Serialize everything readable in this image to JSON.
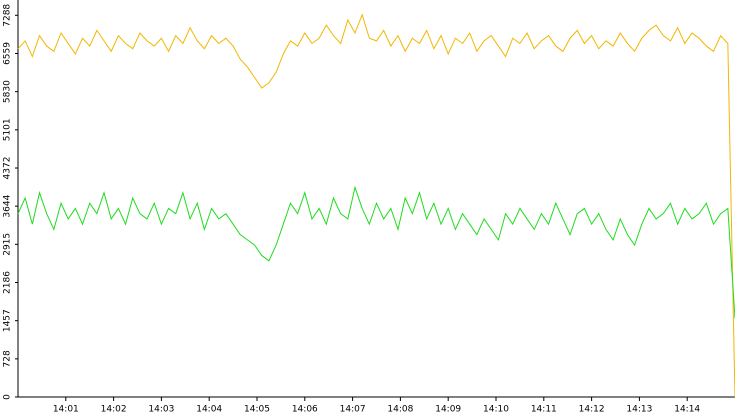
{
  "chart_data": {
    "type": "line",
    "x": [
      840,
      840.15,
      840.3,
      840.45,
      840.6,
      840.75,
      840.9,
      841.05,
      841.2,
      841.35,
      841.5,
      841.65,
      841.8,
      841.95,
      842.1,
      842.25,
      842.4,
      842.55,
      842.7,
      842.85,
      843,
      843.15,
      843.3,
      843.45,
      843.6,
      843.75,
      843.9,
      844.05,
      844.2,
      844.35,
      844.5,
      844.65,
      844.8,
      844.95,
      845.1,
      845.25,
      845.4,
      845.55,
      845.7,
      845.85,
      846,
      846.15,
      846.3,
      846.45,
      846.6,
      846.75,
      846.9,
      847.05,
      847.2,
      847.35,
      847.5,
      847.65,
      847.8,
      847.95,
      848.1,
      848.25,
      848.4,
      848.55,
      848.7,
      848.85,
      849,
      849.15,
      849.3,
      849.45,
      849.6,
      849.75,
      849.9,
      850.05,
      850.2,
      850.35,
      850.5,
      850.65,
      850.8,
      850.95,
      851.1,
      851.25,
      851.4,
      851.55,
      851.7,
      851.85,
      852,
      852.15,
      852.3,
      852.45,
      852.6,
      852.75,
      852.9,
      853.05,
      853.2,
      853.35,
      853.5,
      853.65,
      853.8,
      853.95,
      854.1,
      854.25,
      854.4,
      854.55,
      854.7,
      854.85,
      855
    ],
    "series": [
      {
        "color": "#f2b700",
        "values": [
          6650,
          6800,
          6500,
          6900,
          6700,
          6600,
          6950,
          6750,
          6550,
          6850,
          6700,
          7000,
          6800,
          6600,
          6900,
          6750,
          6650,
          6950,
          6800,
          6700,
          6850,
          6600,
          6900,
          6750,
          7050,
          6800,
          6650,
          6900,
          6750,
          6850,
          6700,
          6450,
          6300,
          6100,
          5900,
          6000,
          6200,
          6550,
          6800,
          6700,
          6950,
          6750,
          6850,
          7100,
          6900,
          6750,
          7200,
          6950,
          7300,
          6850,
          6800,
          7000,
          6700,
          6900,
          6600,
          6850,
          6750,
          7000,
          6650,
          6900,
          6550,
          6850,
          6750,
          6950,
          6600,
          6800,
          6900,
          6700,
          6500,
          6850,
          6750,
          6950,
          6650,
          6800,
          6900,
          6700,
          6600,
          6850,
          7000,
          6750,
          6900,
          6650,
          6800,
          6700,
          6950,
          6750,
          6600,
          6850,
          7000,
          7100,
          6900,
          6800,
          7050,
          6750,
          6950,
          6850,
          6700,
          6600,
          6900,
          6750,
          0
        ]
      },
      {
        "color": "#1fdc1f",
        "values": [
          3500,
          3800,
          3300,
          3900,
          3500,
          3200,
          3700,
          3400,
          3600,
          3300,
          3700,
          3500,
          3900,
          3400,
          3600,
          3300,
          3800,
          3500,
          3400,
          3700,
          3300,
          3600,
          3500,
          3900,
          3400,
          3700,
          3200,
          3600,
          3400,
          3500,
          3300,
          3100,
          3000,
          2900,
          2700,
          2600,
          2900,
          3300,
          3700,
          3500,
          3900,
          3400,
          3600,
          3300,
          3800,
          3500,
          3400,
          4000,
          3600,
          3300,
          3700,
          3400,
          3600,
          3200,
          3800,
          3500,
          3900,
          3400,
          3700,
          3300,
          3600,
          3200,
          3500,
          3300,
          3100,
          3400,
          3200,
          3000,
          3500,
          3300,
          3600,
          3400,
          3200,
          3500,
          3300,
          3700,
          3400,
          3100,
          3500,
          3600,
          3300,
          3500,
          3200,
          3000,
          3400,
          3100,
          2900,
          3300,
          3600,
          3400,
          3500,
          3700,
          3300,
          3600,
          3400,
          3500,
          3700,
          3300,
          3500,
          3600,
          1500
        ]
      }
    ],
    "xlim": [
      840,
      855
    ],
    "xticks": [
      {
        "value": 841,
        "label": "14:01"
      },
      {
        "value": 842,
        "label": "14:02"
      },
      {
        "value": 843,
        "label": "14:03"
      },
      {
        "value": 844,
        "label": "14:04"
      },
      {
        "value": 845,
        "label": "14:05"
      },
      {
        "value": 846,
        "label": "14:06"
      },
      {
        "value": 847,
        "label": "14:07"
      },
      {
        "value": 848,
        "label": "14:08"
      },
      {
        "value": 849,
        "label": "14:09"
      },
      {
        "value": 850,
        "label": "14:10"
      },
      {
        "value": 851,
        "label": "14:11"
      },
      {
        "value": 852,
        "label": "14:12"
      },
      {
        "value": 853,
        "label": "14:13"
      },
      {
        "value": 854,
        "label": "14:14"
      }
    ],
    "ylim": [
      0,
      7580
    ],
    "yticks": [
      0,
      728,
      1457,
      2186,
      2915,
      3644,
      4372,
      5101,
      5830,
      6559,
      7288
    ]
  }
}
